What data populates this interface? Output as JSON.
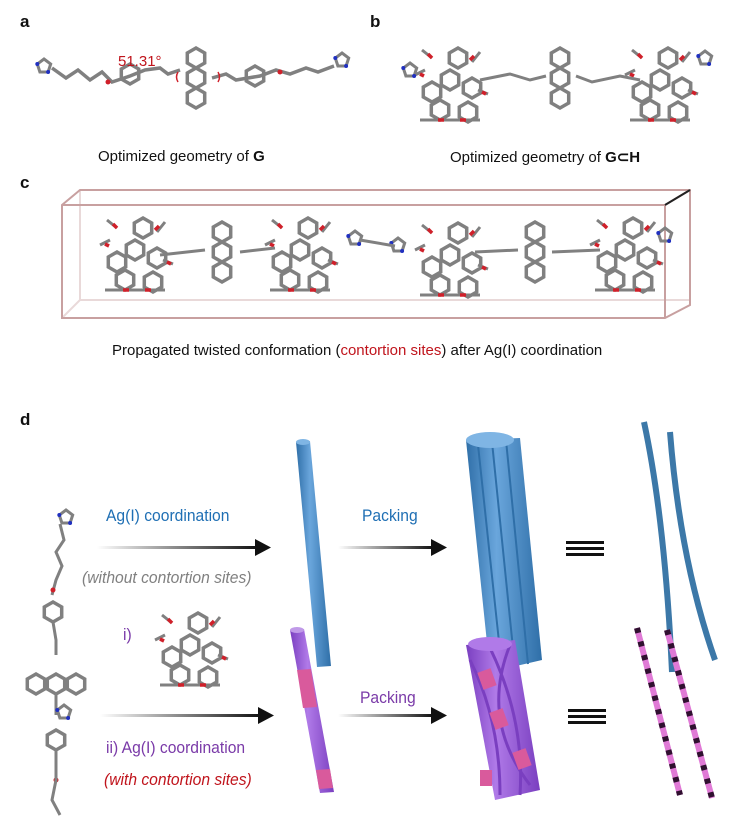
{
  "panels": {
    "a": {
      "label": "a",
      "angle": "51.31°",
      "caption_prefix": "Optimized geometry of ",
      "caption_bold": "G"
    },
    "b": {
      "label": "b",
      "caption_prefix": "Optimized geometry of ",
      "caption_bold": "G⊂H"
    },
    "c": {
      "label": "c",
      "caption_part1": "Propagated twisted conformation (",
      "caption_highlight": "contortion sites",
      "caption_part2": ") after Ag(I) coordination"
    },
    "d": {
      "label": "d",
      "top": {
        "step1": "Ag(I) coordination",
        "step1_note": "(without contortion sites)",
        "step2": "Packing",
        "equiv": "≡"
      },
      "bottom": {
        "step1a": "i)",
        "step1b": "ii) Ag(I) coordination",
        "step1_note": "(with contortion sites)",
        "step2": "Packing",
        "equiv": "≡"
      }
    }
  },
  "colors": {
    "blue_text": "#1f6fb4",
    "blue_rod": "#4a8cc4",
    "purple_text": "#7a3aa8",
    "purple_rod": "#9b59d8",
    "pink_segment": "#d95a9c",
    "red_text": "#c0141c",
    "gray_note": "#808080",
    "twist_pink": "#e07ad6",
    "bond_gray": "#808080",
    "oxygen_red": "#d0202a",
    "nitrogen_blue": "#2030c0",
    "box_edge": "#c8a0a0"
  }
}
